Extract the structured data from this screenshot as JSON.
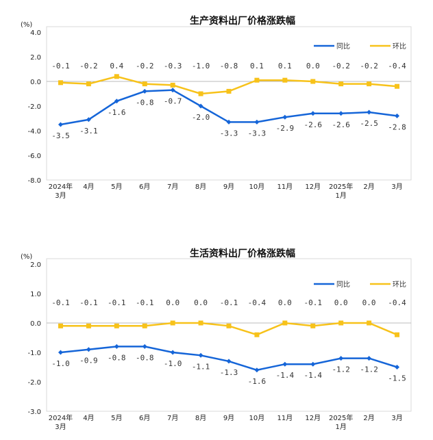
{
  "colors": {
    "yoy": "#1565d8",
    "mom": "#f7c21a"
  },
  "chart_data": [
    {
      "type": "line",
      "title": "生产资料出厂价格涨跌幅",
      "ylabel": "(%)",
      "ylim": [
        -8,
        4
      ],
      "yticks": [
        "4.0",
        "2.0",
        "0.0",
        "-2.0",
        "-4.0",
        "-6.0",
        "-8.0"
      ],
      "ytick_values": [
        4,
        2,
        0,
        -2,
        -4,
        -6,
        -8
      ],
      "categories": [
        [
          "2024年",
          "3月"
        ],
        [
          "4月"
        ],
        [
          "5月"
        ],
        [
          "6月"
        ],
        [
          "7月"
        ],
        [
          "8月"
        ],
        [
          "9月"
        ],
        [
          "10月"
        ],
        [
          "11月"
        ],
        [
          "12月"
        ],
        [
          "2025年",
          "1月"
        ],
        [
          "2月"
        ],
        [
          "3月"
        ]
      ],
      "legend": "top-right",
      "series": [
        {
          "name": "同比",
          "values": [
            -3.5,
            -3.1,
            -1.6,
            -0.8,
            -0.7,
            -2.0,
            -3.3,
            -3.3,
            -2.9,
            -2.6,
            -2.6,
            -2.5,
            -2.8
          ]
        },
        {
          "name": "环比",
          "values": [
            -0.1,
            -0.2,
            0.4,
            -0.2,
            -0.3,
            -1.0,
            -0.8,
            0.1,
            0.1,
            0.0,
            -0.2,
            -0.2,
            -0.4
          ]
        }
      ]
    },
    {
      "type": "line",
      "title": "生活资料出厂价格涨跌幅",
      "ylabel": "(%)",
      "ylim": [
        -3,
        2
      ],
      "yticks": [
        "2.0",
        "1.0",
        "0.0",
        "-1.0",
        "-2.0",
        "-3.0"
      ],
      "ytick_values": [
        2,
        1,
        0,
        -1,
        -2,
        -3
      ],
      "categories": [
        [
          "2024年",
          "3月"
        ],
        [
          "4月"
        ],
        [
          "5月"
        ],
        [
          "6月"
        ],
        [
          "7月"
        ],
        [
          "8月"
        ],
        [
          "9月"
        ],
        [
          "10月"
        ],
        [
          "11月"
        ],
        [
          "12月"
        ],
        [
          "2025年",
          "1月"
        ],
        [
          "2月"
        ],
        [
          "3月"
        ]
      ],
      "legend": "top-right",
      "series": [
        {
          "name": "同比",
          "values": [
            -1.0,
            -0.9,
            -0.8,
            -0.8,
            -1.0,
            -1.1,
            -1.3,
            -1.6,
            -1.4,
            -1.4,
            -1.2,
            -1.2,
            -1.5
          ]
        },
        {
          "name": "环比",
          "values": [
            -0.1,
            -0.1,
            -0.1,
            -0.1,
            0.0,
            0.0,
            -0.1,
            -0.4,
            0.0,
            -0.1,
            0.0,
            0.0,
            -0.4
          ]
        }
      ]
    }
  ]
}
